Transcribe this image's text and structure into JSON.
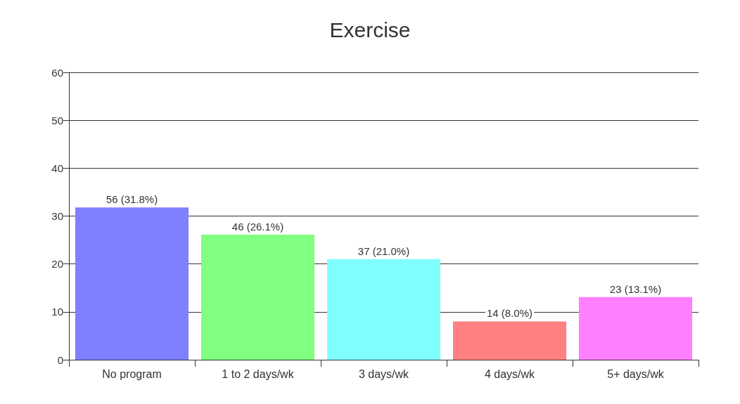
{
  "chart_data": {
    "type": "bar",
    "title": "Exercise",
    "categories": [
      "No program",
      "1 to 2 days/wk",
      "3 days/wk",
      "4 days/wk",
      "5+ days/wk"
    ],
    "values": [
      31.8,
      26.1,
      21.0,
      8.0,
      13.1
    ],
    "colors": [
      "#8080ff",
      "#80ff80",
      "#80ffff",
      "#ff8080",
      "#ff80ff"
    ],
    "value_labels": [
      "56 (31.8%)",
      "46 (26.1%)",
      "37 (21.0%)",
      "14 (8.0%)",
      "23 (13.1%)"
    ],
    "ylim": [
      0,
      60
    ],
    "yticks": [
      0,
      10,
      20,
      30,
      40,
      50,
      60
    ],
    "grid": "y"
  }
}
